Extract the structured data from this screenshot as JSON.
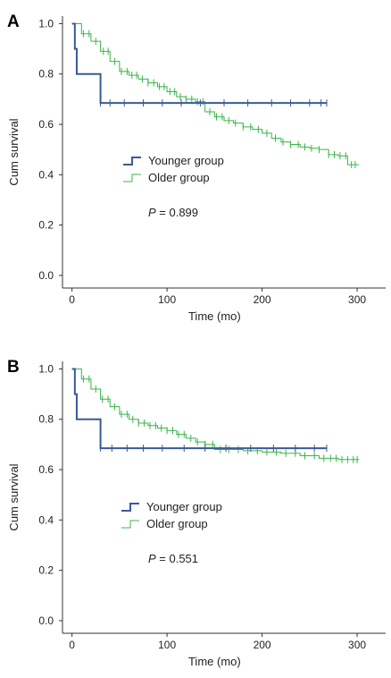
{
  "colors": {
    "younger": "#3b5998",
    "older": "#3ab54a",
    "axis": "#333333"
  },
  "chart_data": [
    {
      "type": "line",
      "panel_label": "A",
      "xlabel": "Time (mo)",
      "ylabel": "Cum survival",
      "xlim": [
        -10,
        330
      ],
      "ylim": [
        -0.05,
        1.03
      ],
      "xticks": [
        0,
        100,
        200,
        300
      ],
      "yticks": [
        0.0,
        0.2,
        0.4,
        0.6,
        0.8,
        1.0
      ],
      "ytick_labels": [
        "0.0",
        "0.2",
        "0.4",
        "0.6",
        "0.8",
        "1.0"
      ],
      "legend": {
        "position": "center-left",
        "entries": [
          "Younger group",
          "Older group"
        ]
      },
      "p_value": {
        "label": "P",
        "text": "= 0.899"
      },
      "series": [
        {
          "name": "Younger group",
          "step": true,
          "x": [
            0,
            3,
            5,
            28,
            30,
            268
          ],
          "y": [
            1.0,
            0.9,
            0.8,
            0.8,
            0.685,
            0.685
          ],
          "censor_x": [
            30,
            40,
            55,
            75,
            95,
            115,
            135,
            160,
            185,
            210,
            230,
            250,
            262,
            268
          ],
          "censor_y": 0.685
        },
        {
          "name": "Older group",
          "step": true,
          "x": [
            0,
            10,
            20,
            30,
            40,
            50,
            60,
            70,
            80,
            90,
            100,
            110,
            120,
            130,
            140,
            150,
            160,
            170,
            180,
            190,
            200,
            210,
            220,
            230,
            240,
            250,
            260,
            270,
            280,
            290,
            302
          ],
          "y": [
            1.0,
            0.96,
            0.93,
            0.89,
            0.85,
            0.81,
            0.795,
            0.78,
            0.765,
            0.75,
            0.73,
            0.71,
            0.7,
            0.69,
            0.65,
            0.63,
            0.615,
            0.605,
            0.59,
            0.58,
            0.565,
            0.545,
            0.53,
            0.52,
            0.51,
            0.505,
            0.5,
            0.48,
            0.475,
            0.44,
            0.44
          ],
          "censor_x": [
            12,
            18,
            25,
            33,
            38,
            45,
            52,
            58,
            63,
            68,
            74,
            80,
            86,
            92,
            97,
            103,
            108,
            114,
            120,
            126,
            132,
            138,
            145,
            152,
            158,
            165,
            172,
            180,
            188,
            196,
            205,
            214,
            222,
            230,
            238,
            245,
            252,
            260,
            270,
            276,
            282,
            288,
            294,
            298
          ]
        }
      ]
    },
    {
      "type": "line",
      "panel_label": "B",
      "xlabel": "Time (mo)",
      "ylabel": "Cum survival",
      "xlim": [
        -10,
        330
      ],
      "ylim": [
        -0.05,
        1.03
      ],
      "xticks": [
        0,
        100,
        200,
        300
      ],
      "yticks": [
        0.0,
        0.2,
        0.4,
        0.6,
        0.8,
        1.0
      ],
      "ytick_labels": [
        "0.0",
        "0.2",
        "0.4",
        "0.6",
        "0.8",
        "1.0"
      ],
      "legend": {
        "position": "center-left",
        "entries": [
          "Younger group",
          "Older group"
        ]
      },
      "p_value": {
        "label": "P",
        "text": "= 0.551"
      },
      "series": [
        {
          "name": "Younger group",
          "step": true,
          "x": [
            0,
            3,
            5,
            28,
            30,
            268
          ],
          "y": [
            1.0,
            0.9,
            0.8,
            0.8,
            0.685,
            0.685
          ],
          "censor_x": [
            30,
            42,
            58,
            75,
            95,
            118,
            140,
            162,
            188,
            212,
            235,
            255,
            268
          ],
          "censor_y": 0.685
        },
        {
          "name": "Older group",
          "step": true,
          "x": [
            0,
            10,
            20,
            30,
            40,
            50,
            60,
            70,
            80,
            90,
            100,
            110,
            120,
            130,
            140,
            150,
            160,
            180,
            200,
            220,
            240,
            260,
            280,
            302
          ],
          "y": [
            1.0,
            0.96,
            0.92,
            0.88,
            0.85,
            0.82,
            0.8,
            0.785,
            0.775,
            0.765,
            0.755,
            0.74,
            0.725,
            0.71,
            0.7,
            0.68,
            0.68,
            0.675,
            0.67,
            0.665,
            0.655,
            0.645,
            0.64,
            0.64
          ],
          "censor_x": [
            12,
            18,
            25,
            32,
            38,
            45,
            52,
            58,
            64,
            70,
            76,
            82,
            88,
            94,
            100,
            106,
            112,
            118,
            125,
            132,
            140,
            148,
            156,
            165,
            175,
            185,
            195,
            205,
            215,
            225,
            235,
            245,
            255,
            265,
            272,
            278,
            284,
            290,
            296,
            300
          ]
        }
      ]
    }
  ]
}
